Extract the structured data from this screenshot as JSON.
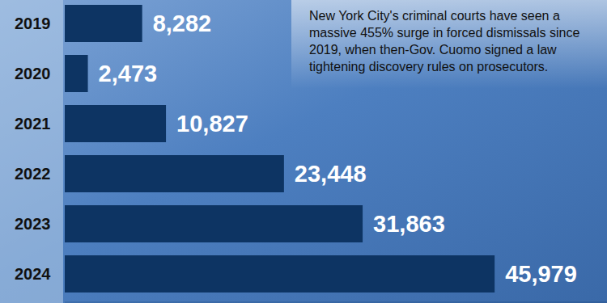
{
  "chart_data": {
    "type": "bar",
    "orientation": "horizontal",
    "annotation": "New York City's criminal courts have seen a massive 455% surge in forced dismissals since 2019, when then-Gov. Cuomo signed a law tightening discovery rules on prosecutors.",
    "categories": [
      "2019",
      "2020",
      "2021",
      "2022",
      "2023",
      "2024"
    ],
    "values": [
      8282,
      2473,
      10827,
      23448,
      31863,
      45979
    ],
    "value_labels": [
      "8,282",
      "2,473",
      "10,827",
      "23,448",
      "31,863",
      "45,979"
    ],
    "color": "#0d3463",
    "xlim": [
      0,
      58000
    ],
    "tick_labels": "y",
    "data_labels": true,
    "grid": false
  }
}
